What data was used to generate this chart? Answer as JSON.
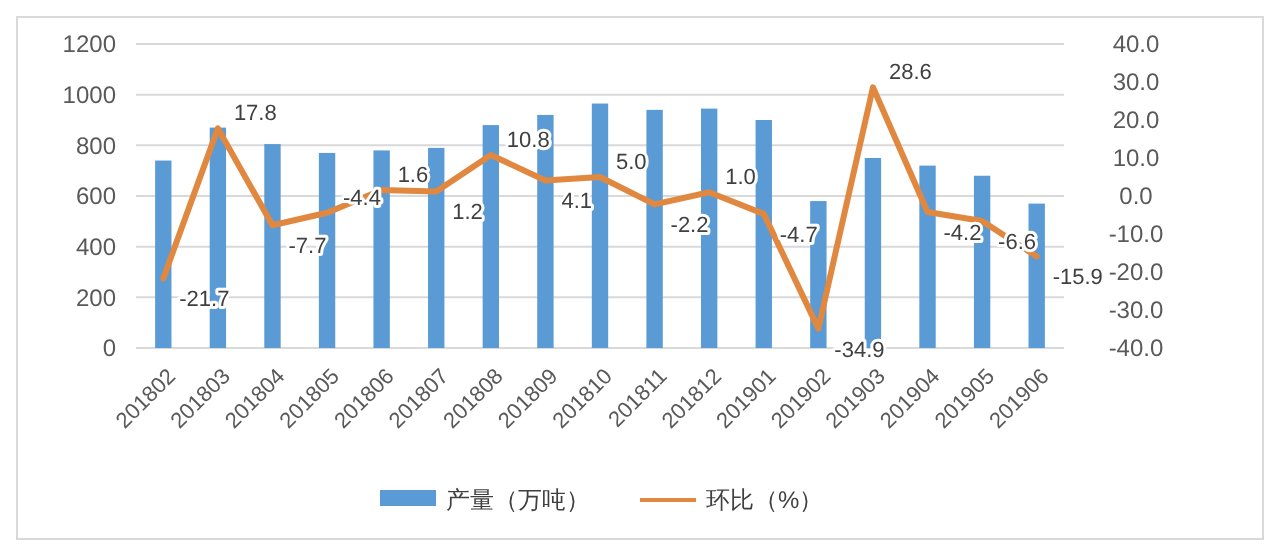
{
  "chart_data": {
    "type": "bar",
    "categories": [
      "201802",
      "201803",
      "201804",
      "201805",
      "201806",
      "201807",
      "201808",
      "201809",
      "201810",
      "201811",
      "201812",
      "201901",
      "201902",
      "201903",
      "201904",
      "201905",
      "201906"
    ],
    "series": [
      {
        "name": "产量（万吨）",
        "color": "#5b9bd5",
        "values": [
          740,
          870,
          805,
          770,
          780,
          790,
          880,
          920,
          965,
          940,
          945,
          900,
          580,
          750,
          720,
          680,
          570
        ]
      },
      {
        "name": "环比（%）",
        "type": "line",
        "axis": "y2",
        "color": "#e0883f",
        "values": [
          -21.7,
          17.8,
          -7.7,
          -4.4,
          1.6,
          1.2,
          10.8,
          4.1,
          5.0,
          -2.2,
          1.0,
          -4.7,
          -34.9,
          28.6,
          -4.2,
          -6.6,
          -15.9
        ],
        "value_labels": [
          "-21.7",
          "17.8",
          "-7.7",
          "-4.4",
          "1.6",
          "1.2",
          "10.8",
          "4.1",
          "5.0",
          "-2.2",
          "1.0",
          "-4.7",
          "-34.9",
          "28.6",
          "-4.2",
          "-6.6",
          "-15.9"
        ]
      }
    ],
    "ylim": [
      0,
      1200
    ],
    "yticks": [
      0,
      200,
      400,
      600,
      800,
      1000,
      1200
    ],
    "y2lim": [
      -40,
      40
    ],
    "y2ticks": [
      {
        "value": -40,
        "label": "-40.0"
      },
      {
        "value": -30,
        "label": "-30.0"
      },
      {
        "value": -20,
        "label": "-20.0"
      },
      {
        "value": -10,
        "label": "-10.0"
      },
      {
        "value": 0,
        "label": "0.0"
      },
      {
        "value": 10,
        "label": "10.0"
      },
      {
        "value": 20,
        "label": "20.0"
      },
      {
        "value": 30,
        "label": "30.0"
      },
      {
        "value": 40,
        "label": "40.0"
      }
    ],
    "grid": "y",
    "legend": "bottom",
    "marker": "none",
    "line_style": "solid"
  }
}
